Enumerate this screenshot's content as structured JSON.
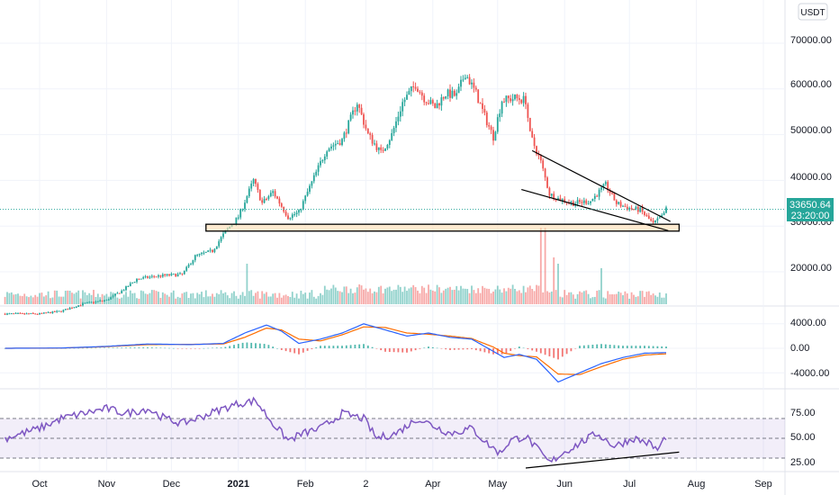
{
  "chart_data": [
    {
      "type": "candlestick",
      "currency": "USDT",
      "last_price": "33650.64",
      "countdown": "23:20:00",
      "y_ticks": [
        "70000.00",
        "60000.00",
        "50000.00",
        "40000.00",
        "30000.00",
        "20000.00"
      ],
      "x_labels": [
        {
          "label": "Oct",
          "day": 0
        },
        {
          "label": "Nov",
          "day": 31
        },
        {
          "label": "Dec",
          "day": 61
        },
        {
          "label": "2021",
          "day": 92,
          "bold": true
        },
        {
          "label": "Feb",
          "day": 123
        },
        {
          "label": "2",
          "day": 151
        },
        {
          "label": "Apr",
          "day": 182
        },
        {
          "label": "May",
          "day": 212
        },
        {
          "label": "Jun",
          "day": 243
        },
        {
          "label": "Jul",
          "day": 273
        },
        {
          "label": "Aug",
          "day": 304
        },
        {
          "label": "Sep",
          "day": 335
        }
      ],
      "price_path": [
        [
          -16,
          10800
        ],
        [
          0,
          10800
        ],
        [
          10,
          11400
        ],
        [
          20,
          13000
        ],
        [
          31,
          13800
        ],
        [
          38,
          15800
        ],
        [
          45,
          18400
        ],
        [
          53,
          19000
        ],
        [
          61,
          19300
        ],
        [
          66,
          19400
        ],
        [
          72,
          23400
        ],
        [
          80,
          24600
        ],
        [
          86,
          28800
        ],
        [
          92,
          32000
        ],
        [
          99,
          40000
        ],
        [
          103,
          35000
        ],
        [
          108,
          37500
        ],
        [
          115,
          32000
        ],
        [
          120,
          33000
        ],
        [
          125,
          38500
        ],
        [
          133,
          47000
        ],
        [
          140,
          48800
        ],
        [
          147,
          57000
        ],
        [
          152,
          50000
        ],
        [
          158,
          46000
        ],
        [
          163,
          50000
        ],
        [
          168,
          57000
        ],
        [
          174,
          61000
        ],
        [
          178,
          58000
        ],
        [
          183,
          56000
        ],
        [
          188,
          59000
        ],
        [
          193,
          58500
        ],
        [
          197,
          63500
        ],
        [
          202,
          59000
        ],
        [
          206,
          54000
        ],
        [
          210,
          49500
        ],
        [
          214,
          57500
        ],
        [
          220,
          58000
        ],
        [
          225,
          57500
        ],
        [
          227,
          50000
        ],
        [
          232,
          44000
        ],
        [
          236,
          37000
        ],
        [
          240,
          36000
        ],
        [
          247,
          35000
        ],
        [
          255,
          35500
        ],
        [
          262,
          39000
        ],
        [
          267,
          35000
        ],
        [
          272,
          34000
        ],
        [
          278,
          33500
        ],
        [
          284,
          30500
        ],
        [
          288,
          32000
        ],
        [
          290,
          33650
        ]
      ],
      "support_zone": {
        "low": 28900,
        "high": 30400
      },
      "wedge_upper": [
        [
          228,
          46500
        ],
        [
          292,
          31000
        ]
      ],
      "wedge_lower": [
        [
          223,
          38000
        ],
        [
          291,
          29000
        ]
      ],
      "macd": {
        "ticks": [
          "4000.00",
          "0.00",
          "-4000.00"
        ],
        "line": [
          [
            -16,
            0
          ],
          [
            10,
            50
          ],
          [
            30,
            300
          ],
          [
            50,
            700
          ],
          [
            70,
            600
          ],
          [
            85,
            800
          ],
          [
            95,
            2500
          ],
          [
            105,
            3800
          ],
          [
            112,
            2800
          ],
          [
            120,
            800
          ],
          [
            130,
            1500
          ],
          [
            140,
            2500
          ],
          [
            150,
            4000
          ],
          [
            160,
            3000
          ],
          [
            170,
            2000
          ],
          [
            180,
            2500
          ],
          [
            190,
            1800
          ],
          [
            200,
            1500
          ],
          [
            210,
            -500
          ],
          [
            215,
            -1500
          ],
          [
            222,
            -1000
          ],
          [
            230,
            -1800
          ],
          [
            240,
            -5500
          ],
          [
            250,
            -4000
          ],
          [
            260,
            -2500
          ],
          [
            270,
            -1500
          ],
          [
            280,
            -800
          ],
          [
            290,
            -700
          ]
        ],
        "signal": [
          [
            -16,
            0
          ],
          [
            10,
            40
          ],
          [
            30,
            250
          ],
          [
            50,
            600
          ],
          [
            70,
            650
          ],
          [
            85,
            700
          ],
          [
            95,
            1800
          ],
          [
            105,
            3300
          ],
          [
            112,
            3000
          ],
          [
            120,
            1500
          ],
          [
            130,
            1200
          ],
          [
            140,
            2200
          ],
          [
            150,
            3500
          ],
          [
            160,
            3400
          ],
          [
            170,
            2500
          ],
          [
            180,
            2300
          ],
          [
            190,
            2000
          ],
          [
            200,
            1600
          ],
          [
            210,
            200
          ],
          [
            215,
            -800
          ],
          [
            222,
            -1200
          ],
          [
            230,
            -1400
          ],
          [
            240,
            -4200
          ],
          [
            250,
            -4300
          ],
          [
            260,
            -3000
          ],
          [
            270,
            -1800
          ],
          [
            280,
            -1100
          ],
          [
            290,
            -900
          ]
        ]
      },
      "rsi": {
        "ticks": [
          "75.00",
          "50.00",
          "25.00"
        ],
        "upper_band": 70,
        "middle": 50,
        "lower_band": 30,
        "line": [
          [
            -16,
            50
          ],
          [
            -8,
            55
          ],
          [
            0,
            60
          ],
          [
            10,
            70
          ],
          [
            20,
            75
          ],
          [
            31,
            80
          ],
          [
            40,
            75
          ],
          [
            50,
            80
          ],
          [
            58,
            70
          ],
          [
            66,
            65
          ],
          [
            75,
            72
          ],
          [
            85,
            80
          ],
          [
            92,
            85
          ],
          [
            100,
            88
          ],
          [
            108,
            65
          ],
          [
            115,
            48
          ],
          [
            122,
            55
          ],
          [
            130,
            60
          ],
          [
            140,
            75
          ],
          [
            150,
            70
          ],
          [
            156,
            50
          ],
          [
            165,
            55
          ],
          [
            175,
            70
          ],
          [
            180,
            65
          ],
          [
            190,
            55
          ],
          [
            200,
            60
          ],
          [
            207,
            45
          ],
          [
            213,
            35
          ],
          [
            218,
            48
          ],
          [
            225,
            52
          ],
          [
            232,
            35
          ],
          [
            236,
            25
          ],
          [
            242,
            35
          ],
          [
            250,
            45
          ],
          [
            258,
            55
          ],
          [
            266,
            42
          ],
          [
            275,
            50
          ],
          [
            282,
            45
          ],
          [
            286,
            38
          ],
          [
            290,
            52
          ]
        ],
        "trendline": [
          [
            225,
            20
          ],
          [
            296,
            36
          ]
        ]
      }
    }
  ]
}
